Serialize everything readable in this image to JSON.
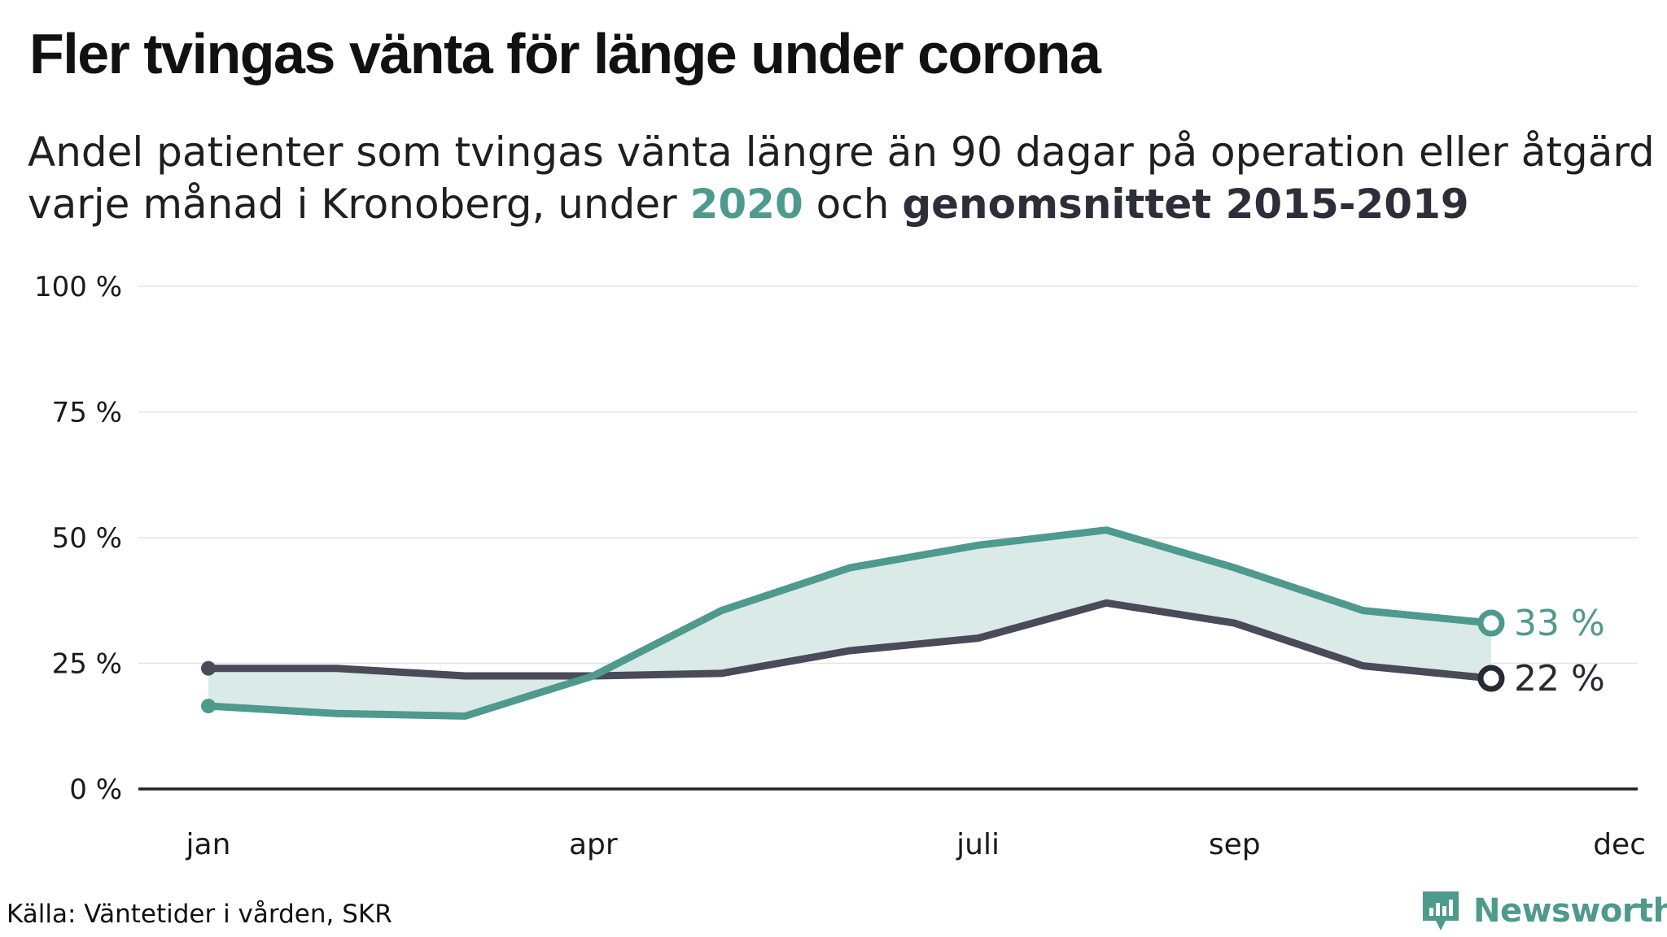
{
  "title": "Fler tvingas vänta för länge under corona",
  "subtitle": {
    "part1": "Andel patienter som tvingas vänta längre än 90 dagar på operation eller åtgärd varje månad i Kronoberg, under ",
    "highlight_2020": "2020",
    "part2": " och ",
    "highlight_avg": "genomsnittet 2015-2019"
  },
  "source": "Källa: Väntetider i vården, SKR",
  "brand": {
    "name": "Newsworthy",
    "icon": "bar-chart-bubble-icon"
  },
  "colors": {
    "series_2020": "#4e9a8c",
    "series_avg": "#4a4a58",
    "fill": "#d8e9e5",
    "grid": "#e3e3e3",
    "baseline": "#222222"
  },
  "chart_data": {
    "type": "line",
    "x_months": [
      1,
      2,
      3,
      4,
      5,
      6,
      7,
      8,
      9,
      10,
      11,
      12
    ],
    "x_ticks": [
      {
        "month": 1,
        "label": "jan"
      },
      {
        "month": 4,
        "label": "apr"
      },
      {
        "month": 7,
        "label": "juli"
      },
      {
        "month": 9,
        "label": "sep"
      },
      {
        "month": 12,
        "label": "dec"
      }
    ],
    "y_ticks": [
      {
        "value": 0,
        "label": "0 %"
      },
      {
        "value": 25,
        "label": "25 %"
      },
      {
        "value": 50,
        "label": "50 %"
      },
      {
        "value": 75,
        "label": "75 %"
      },
      {
        "value": 100,
        "label": "100 %"
      }
    ],
    "ylim": [
      0,
      100
    ],
    "xlim": [
      1,
      12
    ],
    "grid": true,
    "series": [
      {
        "name": "2020",
        "color": "#4e9a8c",
        "months": [
          1,
          2,
          3,
          4,
          5,
          6,
          7,
          8,
          9,
          10,
          11
        ],
        "values": [
          16.5,
          15,
          14.5,
          22.5,
          35.5,
          44,
          48.5,
          51.5,
          44,
          35.5,
          33
        ],
        "end_label": "33 %"
      },
      {
        "name": "genomsnittet 2015-2019",
        "color": "#4a4a58",
        "months": [
          1,
          2,
          3,
          4,
          5,
          6,
          7,
          8,
          9,
          10,
          11
        ],
        "values": [
          24,
          24,
          22.5,
          22.5,
          23,
          27.5,
          30,
          37,
          33,
          24.5,
          22
        ],
        "end_label": "22 %"
      }
    ]
  }
}
